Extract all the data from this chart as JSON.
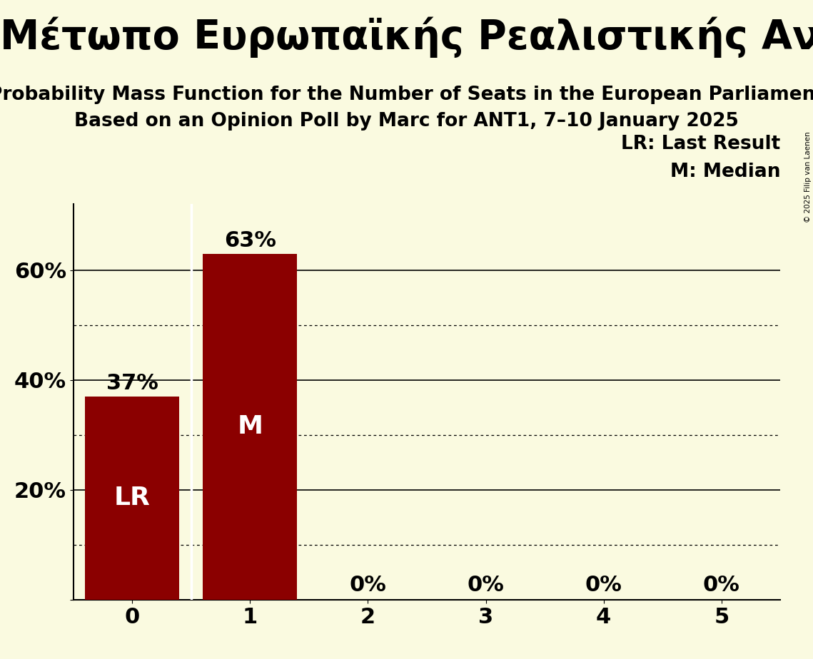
{
  "party_name": "Μέτωπο Ευρωπαϊκής Ρεαλιστικής Ανυπακοής (GUE/NGL)",
  "title_line1": "Probability Mass Function for the Number of Seats in the European Parliament",
  "title_line2": "Based on an Opinion Poll by Marc for ANT1, 7–10 January 2025",
  "seats": [
    0,
    1,
    2,
    3,
    4,
    5
  ],
  "probabilities": [
    0.37,
    0.63,
    0.0,
    0.0,
    0.0,
    0.0
  ],
  "bar_color": "#8B0000",
  "background_color": "#FAFAE0",
  "last_result_seat": 0,
  "median_seat": 1,
  "copyright_text": "© 2025 Filip van Laenen",
  "legend_lr": "LR: Last Result",
  "legend_m": "M: Median",
  "bar_label_fontsize": 22,
  "bar_inner_label_fontsize": 26,
  "axis_label_fontsize": 22,
  "title_fontsize": 19,
  "party_fontsize": 40
}
